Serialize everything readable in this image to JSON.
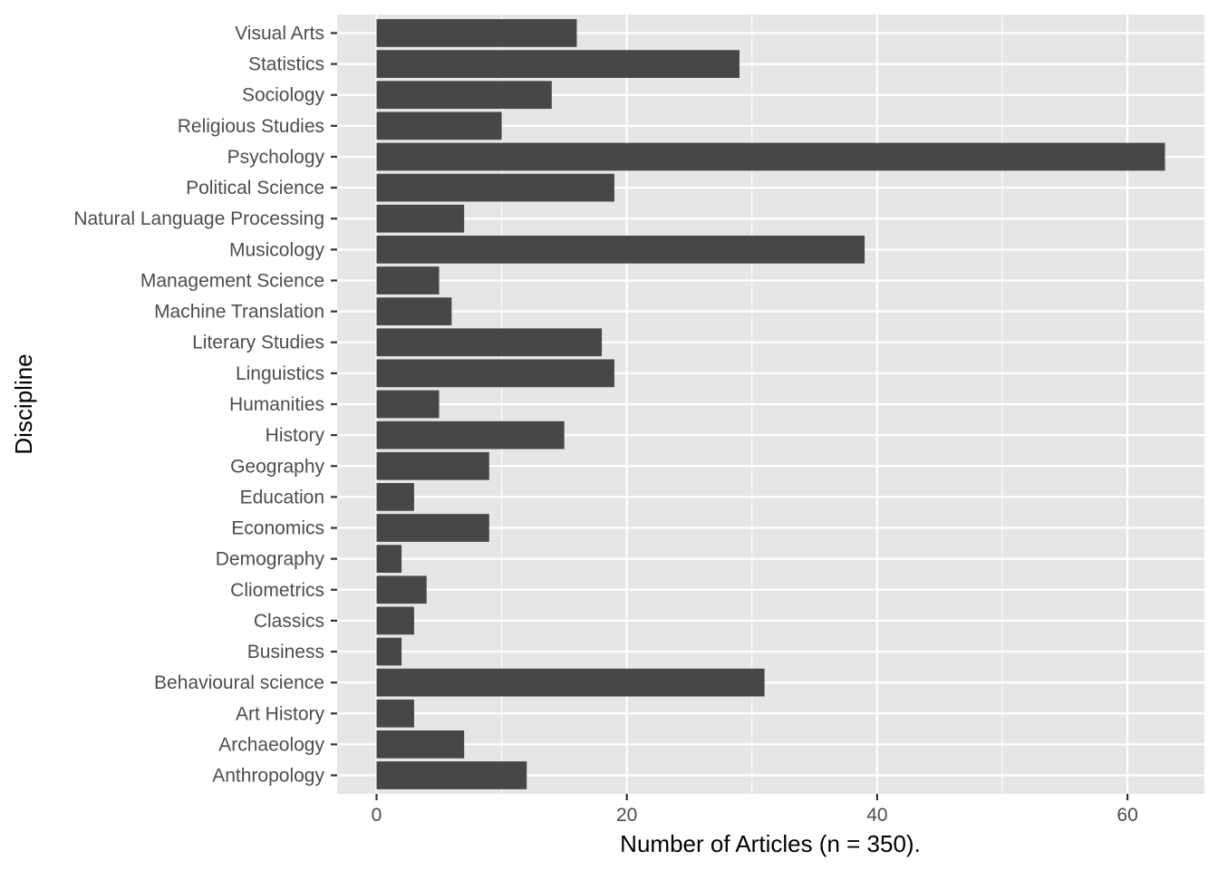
{
  "chart_data": {
    "type": "bar",
    "orientation": "horizontal",
    "xlabel": "Number of Articles (n = 350).",
    "ylabel": "Discipline",
    "categories": [
      "Anthropology",
      "Archaeology",
      "Art History",
      "Behavioural science",
      "Business",
      "Classics",
      "Cliometrics",
      "Demography",
      "Economics",
      "Education",
      "Geography",
      "History",
      "Humanities",
      "Linguistics",
      "Literary Studies",
      "Machine Translation",
      "Management Science",
      "Musicology",
      "Natural Language Processing",
      "Political Science",
      "Psychology",
      "Religious Studies",
      "Sociology",
      "Statistics",
      "Visual Arts"
    ],
    "values": [
      12,
      7,
      3,
      31,
      2,
      3,
      4,
      2,
      9,
      3,
      9,
      15,
      5,
      19,
      18,
      6,
      5,
      39,
      7,
      19,
      63,
      10,
      14,
      29,
      16
    ],
    "xlim": [
      -3.15,
      66.15
    ],
    "xticks": [
      0,
      20,
      40,
      60
    ],
    "grid": true,
    "colors": {
      "bar": "#474747",
      "panel": "#e6e6e6",
      "grid": "#ffffff"
    }
  }
}
